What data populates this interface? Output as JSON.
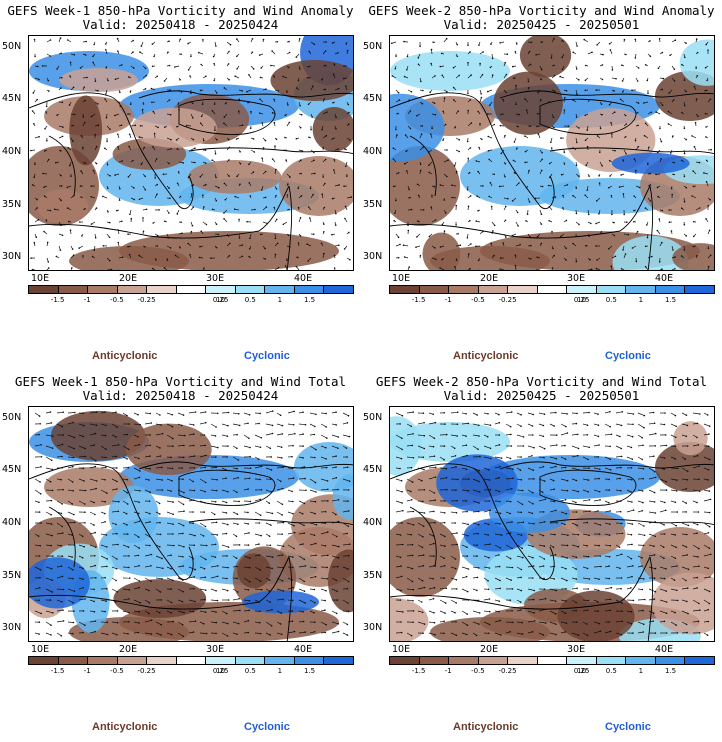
{
  "panels": [
    {
      "title": "GEFS Week-1 850-hPa Vorticity and Wind Anomaly",
      "valid": "Valid: 20250418 - 20250424",
      "variant": 1
    },
    {
      "title": "GEFS Week-2 850-hPa Vorticity and Wind Anomaly",
      "valid": "Valid: 20250425 - 20250501",
      "variant": 2
    },
    {
      "title": "GEFS Week-1 850-hPa Vorticity and Wind Total",
      "valid": "Valid: 20250418 - 20250424",
      "variant": 3
    },
    {
      "title": "GEFS Week-2 850-hPa Vorticity and Wind Total",
      "valid": "Valid: 20250425 - 20250501",
      "variant": 4
    }
  ],
  "axes": {
    "lat_labels": [
      "50N",
      "45N",
      "40N",
      "35N",
      "30N"
    ],
    "lon_labels": [
      "10E",
      "20E",
      "30E",
      "40E"
    ]
  },
  "colorbar": {
    "labels": [
      "-1.5",
      "-1",
      "-0.5",
      "-0.25",
      "0.25",
      "0.5",
      "1",
      "1.5"
    ],
    "mid_label": "10",
    "colors": [
      "#6b4234",
      "#8a5a48",
      "#a97a66",
      "#c9a193",
      "#e9d3c9",
      "#ffffff",
      "#c9f2fb",
      "#9adff5",
      "#62b5ef",
      "#3b8fe6",
      "#1f66d8"
    ]
  },
  "legend": {
    "anticyclonic": "Anticyclonic",
    "cyclonic": "Cyclonic"
  }
}
